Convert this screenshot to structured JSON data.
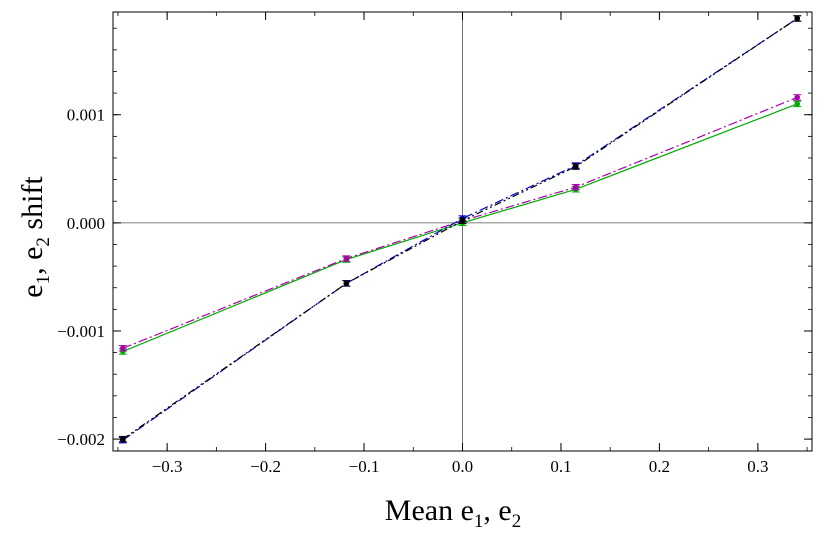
{
  "chart_data": {
    "type": "line",
    "xlabel": {
      "prefix": "Mean e",
      "sub1": "1",
      "mid": ", e",
      "sub2": "2"
    },
    "ylabel": {
      "prefix": "e",
      "sub1": "1",
      "mid": ", e",
      "sub2": "2",
      "suffix": " shift"
    },
    "xlim": [
      -0.355,
      0.355
    ],
    "ylim": [
      -0.00211,
      0.00195
    ],
    "x_ticks": [
      {
        "value": -0.3,
        "label": "−0.3"
      },
      {
        "value": -0.2,
        "label": "−0.2"
      },
      {
        "value": -0.1,
        "label": "−0.1"
      },
      {
        "value": 0.0,
        "label": "0.0"
      },
      {
        "value": 0.1,
        "label": "0.1"
      },
      {
        "value": 0.2,
        "label": "0.2"
      },
      {
        "value": 0.3,
        "label": "0.3"
      }
    ],
    "y_ticks": [
      {
        "value": 0.001,
        "label": "0.001"
      },
      {
        "value": 0.0,
        "label": "0.000"
      },
      {
        "value": -0.001,
        "label": "−0.001"
      },
      {
        "value": -0.002,
        "label": "−0.002"
      }
    ],
    "grid": false,
    "series": [
      {
        "color": "#00aa00",
        "dash": "solid",
        "x": [
          -0.345,
          -0.118,
          0.0,
          0.115,
          0.34
        ],
        "y": [
          -0.00119,
          -0.00034,
          0.0,
          0.00031,
          0.0011
        ],
        "error": 2.5e-05
      },
      {
        "color": "#aa00aa",
        "dash": "dashdot",
        "x": [
          -0.345,
          -0.118,
          0.0,
          0.115,
          0.34
        ],
        "y": [
          -0.00116,
          -0.00033,
          2e-05,
          0.00033,
          0.00116
        ],
        "error": 2.5e-05
      },
      {
        "color": "#0000cc",
        "dash": "dashdot",
        "x": [
          -0.345,
          -0.118,
          0.0,
          0.115,
          0.34
        ],
        "y": [
          -0.00201,
          -0.00056,
          4e-05,
          0.00053,
          0.00189
        ],
        "error": 2.5e-05
      },
      {
        "color": "#000000",
        "dash": "dashdotdot",
        "x": [
          -0.345,
          -0.118,
          0.0,
          0.115,
          0.34
        ],
        "y": [
          -0.002,
          -0.00056,
          2e-05,
          0.00052,
          0.00189
        ],
        "error": 2.5e-05
      }
    ]
  }
}
